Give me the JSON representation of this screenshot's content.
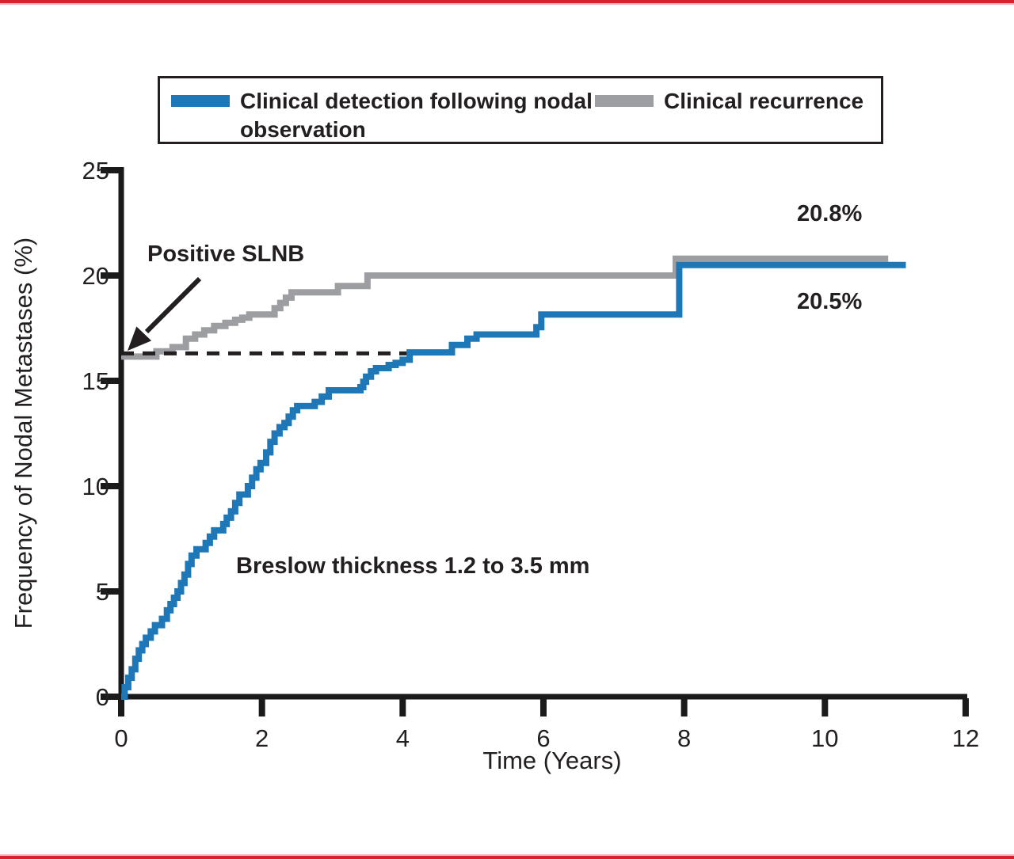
{
  "page": {
    "background": "#ffffff",
    "accent_border_color": "#d7232e"
  },
  "legend": {
    "items": [
      {
        "label": "Clinical detection following nodal observation",
        "color": "#1e78b8"
      },
      {
        "label": "Clinical recurrence",
        "color": "#9d9ea1"
      }
    ]
  },
  "chart_data": {
    "type": "line",
    "style": "step_cumulative_incidence",
    "xlabel": "Time (Years)",
    "ylabel": "Frequency of Nodal Metastases (%)",
    "xlim": [
      0,
      12
    ],
    "ylim": [
      0,
      25
    ],
    "x_ticks": [
      0,
      2,
      4,
      6,
      8,
      10,
      12
    ],
    "y_ticks": [
      25,
      20,
      15,
      10,
      5,
      0
    ],
    "grid": false,
    "legend_position": "top",
    "axis_color": "#1a1a1a",
    "text_color": "#231f20",
    "series": [
      {
        "name": "Clinical recurrence",
        "color": "#9d9ea1",
        "end_t": 10.9,
        "final_value_pct": 20.8,
        "points": [
          [
            0,
            16.15
          ],
          [
            0.5,
            16.4
          ],
          [
            0.73,
            16.6
          ],
          [
            0.92,
            17.0
          ],
          [
            1.05,
            17.2
          ],
          [
            1.18,
            17.4
          ],
          [
            1.32,
            17.6
          ],
          [
            1.48,
            17.75
          ],
          [
            1.62,
            17.9
          ],
          [
            1.72,
            18.0
          ],
          [
            1.82,
            18.15
          ],
          [
            2.18,
            18.45
          ],
          [
            2.26,
            18.7
          ],
          [
            2.34,
            18.95
          ],
          [
            2.42,
            19.2
          ],
          [
            3.08,
            19.5
          ],
          [
            3.5,
            20.0
          ],
          [
            7.88,
            20.8
          ]
        ]
      },
      {
        "name": "Clinical detection following nodal observation",
        "color": "#1e78b8",
        "end_t": 11.15,
        "final_value_pct": 20.5,
        "points": [
          [
            0,
            0
          ],
          [
            0.05,
            0.45
          ],
          [
            0.1,
            0.9
          ],
          [
            0.15,
            1.3
          ],
          [
            0.2,
            1.8
          ],
          [
            0.25,
            2.2
          ],
          [
            0.3,
            2.5
          ],
          [
            0.35,
            2.8
          ],
          [
            0.42,
            3.1
          ],
          [
            0.48,
            3.4
          ],
          [
            0.58,
            3.7
          ],
          [
            0.65,
            4.1
          ],
          [
            0.7,
            4.4
          ],
          [
            0.75,
            4.7
          ],
          [
            0.8,
            5.0
          ],
          [
            0.85,
            5.4
          ],
          [
            0.9,
            5.8
          ],
          [
            0.95,
            6.3
          ],
          [
            1.0,
            6.7
          ],
          [
            1.07,
            7.0
          ],
          [
            1.2,
            7.3
          ],
          [
            1.26,
            7.6
          ],
          [
            1.32,
            7.9
          ],
          [
            1.45,
            8.2
          ],
          [
            1.5,
            8.5
          ],
          [
            1.56,
            8.8
          ],
          [
            1.62,
            9.2
          ],
          [
            1.68,
            9.6
          ],
          [
            1.8,
            10.0
          ],
          [
            1.86,
            10.4
          ],
          [
            1.92,
            10.8
          ],
          [
            1.98,
            11.1
          ],
          [
            2.06,
            11.6
          ],
          [
            2.12,
            12.1
          ],
          [
            2.18,
            12.5
          ],
          [
            2.25,
            12.8
          ],
          [
            2.32,
            13.0
          ],
          [
            2.38,
            13.3
          ],
          [
            2.44,
            13.6
          ],
          [
            2.5,
            13.8
          ],
          [
            2.75,
            14.0
          ],
          [
            2.85,
            14.25
          ],
          [
            2.95,
            14.55
          ],
          [
            3.4,
            14.7
          ],
          [
            3.44,
            14.95
          ],
          [
            3.48,
            15.2
          ],
          [
            3.55,
            15.45
          ],
          [
            3.62,
            15.6
          ],
          [
            3.8,
            15.75
          ],
          [
            3.9,
            15.85
          ],
          [
            4.0,
            16.0
          ],
          [
            4.1,
            16.35
          ],
          [
            4.7,
            16.7
          ],
          [
            4.92,
            17.0
          ],
          [
            5.05,
            17.2
          ],
          [
            5.9,
            17.55
          ],
          [
            5.97,
            18.15
          ],
          [
            7.93,
            20.5
          ]
        ]
      }
    ],
    "annotations": {
      "positive_slnb": {
        "text": "Positive SLNB",
        "arrow_points_to": {
          "t": 0,
          "value": 16.2
        }
      },
      "dashed_reference_line": {
        "value": 16.3,
        "from_t": 0,
        "to_t": 4.1,
        "color": "#231f20"
      },
      "breslow": {
        "text": "Breslow thickness 1.2 to 3.5 mm"
      },
      "final_labels": [
        {
          "text": "20.8%",
          "series": "Clinical recurrence"
        },
        {
          "text": "20.5%",
          "series": "Clinical detection following nodal observation"
        }
      ]
    }
  }
}
